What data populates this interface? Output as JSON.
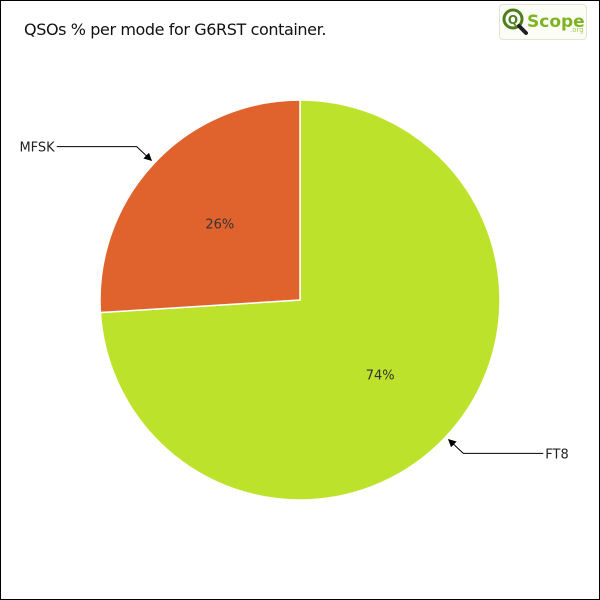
{
  "chart_data": {
    "type": "pie",
    "title": "QSOs % per mode for G6RST container.",
    "slices": [
      {
        "label": "FT8",
        "value": 74,
        "percent_label": "74%",
        "color": "#bde22c"
      },
      {
        "label": "MFSK",
        "value": 26,
        "percent_label": "26%",
        "color": "#e0632e"
      }
    ]
  },
  "logo": {
    "text_q": "Q",
    "text_scope": "Scope",
    "text_org": ".org"
  }
}
